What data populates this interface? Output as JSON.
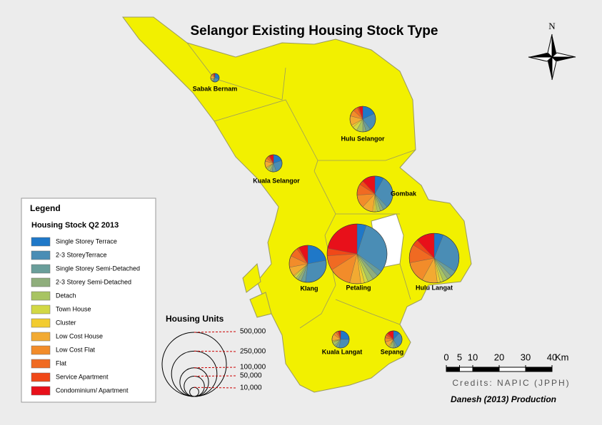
{
  "title": "Selangor Existing Housing Stock Type",
  "north": "N",
  "legend": {
    "title": "Legend",
    "subtitle": "Housing Stock Q2 2013",
    "items": [
      {
        "name": "Single Storey Terrace",
        "color": "#1f78c8"
      },
      {
        "name": "2-3 StoreyTerrace",
        "color": "#4a8db5"
      },
      {
        "name": "Single Storey Semi-Detached",
        "color": "#6a9e9a"
      },
      {
        "name": "2-3 Storey Semi-Detached",
        "color": "#8fae7c"
      },
      {
        "name": "Detach",
        "color": "#a8c462"
      },
      {
        "name": "Town House",
        "color": "#d2d844"
      },
      {
        "name": "Cluster",
        "color": "#f2cc30"
      },
      {
        "name": "Low Cost House",
        "color": "#f2aa32"
      },
      {
        "name": "Low Cost Flat",
        "color": "#f28c2a"
      },
      {
        "name": "Flat",
        "color": "#f06a22"
      },
      {
        "name": "Service Apartment",
        "color": "#f04818"
      },
      {
        "name": "Condominium/ Apartment",
        "color": "#e8101a"
      }
    ]
  },
  "size_legend": {
    "title": "Housing Units",
    "sizes": [
      {
        "value": 500000,
        "label": "500,000"
      },
      {
        "value": 250000,
        "label": "250,000"
      },
      {
        "value": 100000,
        "label": "100,000"
      },
      {
        "value": 50000,
        "label": "50,000"
      },
      {
        "value": 10000,
        "label": "10,000"
      }
    ]
  },
  "districts": [
    {
      "name": "Sabak Bernam",
      "units": 9000,
      "shares": [
        30,
        25,
        5,
        2,
        8,
        0,
        0,
        15,
        5,
        5,
        0,
        5
      ]
    },
    {
      "name": "Hulu Selangor",
      "units": 80000,
      "shares": [
        18,
        22,
        6,
        4,
        8,
        6,
        3,
        12,
        8,
        6,
        2,
        5
      ]
    },
    {
      "name": "Kuala Selangor",
      "units": 36000,
      "shares": [
        20,
        25,
        8,
        4,
        6,
        2,
        2,
        12,
        6,
        5,
        2,
        8
      ]
    },
    {
      "name": "Gombak",
      "units": 155000,
      "shares": [
        8,
        30,
        4,
        3,
        3,
        2,
        2,
        10,
        12,
        10,
        4,
        12
      ]
    },
    {
      "name": "Petaling",
      "units": 435000,
      "shares": [
        5,
        30,
        3,
        3,
        3,
        2,
        2,
        6,
        12,
        8,
        4,
        22
      ]
    },
    {
      "name": "Klang",
      "units": 167000,
      "shares": [
        22,
        30,
        4,
        3,
        2,
        2,
        1,
        8,
        10,
        8,
        2,
        8
      ]
    },
    {
      "name": "Hulu Langat",
      "units": 300000,
      "shares": [
        6,
        28,
        4,
        3,
        3,
        2,
        2,
        10,
        14,
        12,
        4,
        12
      ]
    },
    {
      "name": "Kuala Langat",
      "units": 36000,
      "shares": [
        25,
        28,
        6,
        4,
        6,
        2,
        2,
        12,
        6,
        4,
        1,
        4
      ]
    },
    {
      "name": "Sepang",
      "units": 36000,
      "shares": [
        12,
        30,
        5,
        4,
        5,
        2,
        2,
        10,
        8,
        6,
        4,
        12
      ]
    }
  ],
  "scale_bar": {
    "ticks": [
      0,
      5,
      10,
      20,
      30,
      40
    ],
    "unit": "Km"
  },
  "credits": "Credits: NAPIC (JPPH)",
  "production": "Danesh (2013) Production"
}
